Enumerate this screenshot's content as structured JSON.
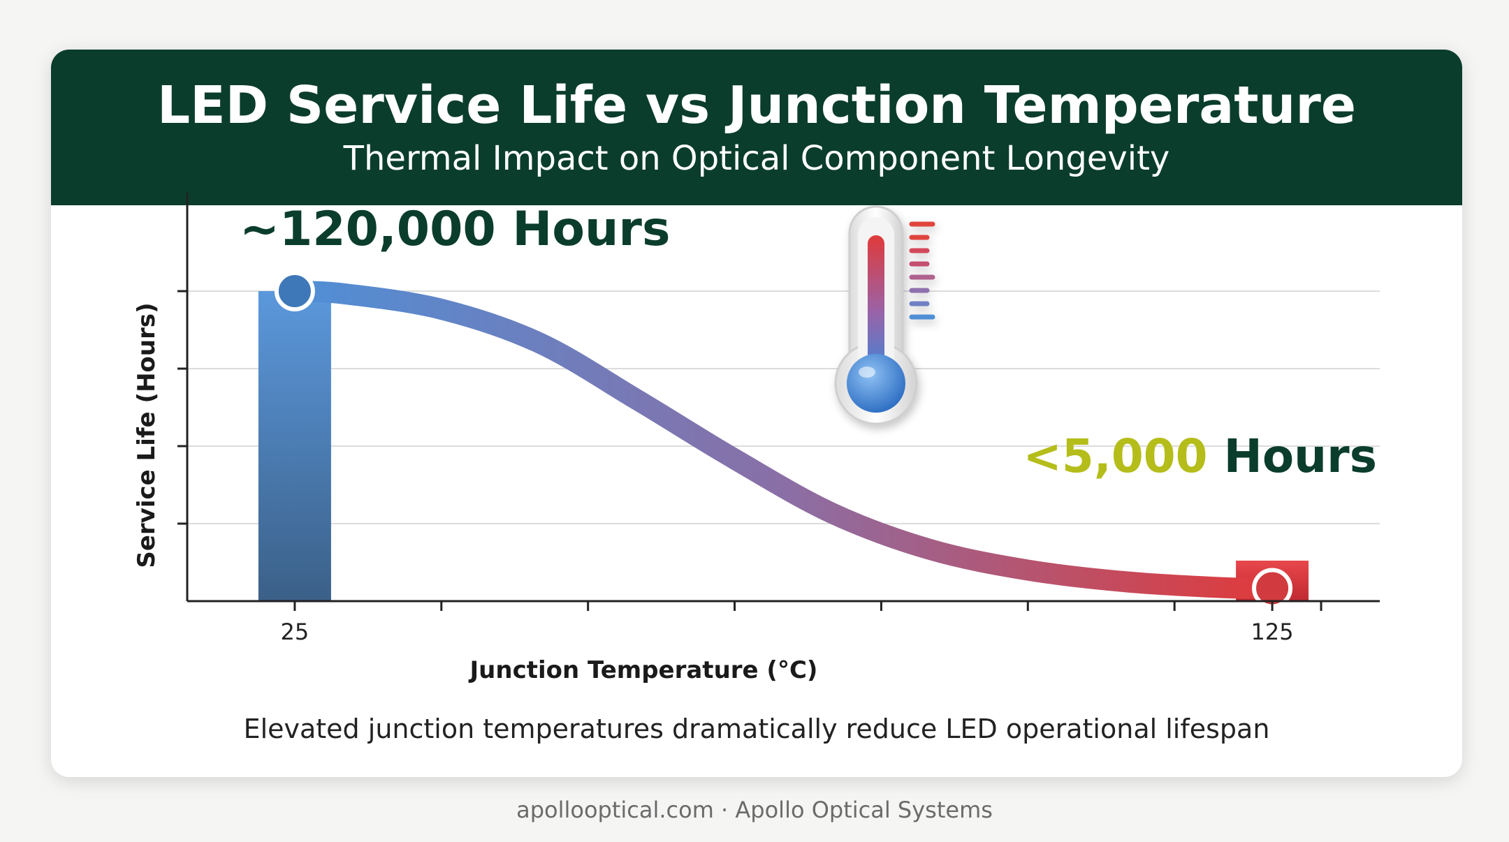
{
  "header": {
    "title": "LED Service Life vs Junction Temperature",
    "subtitle": "Thermal Impact on Optical Component Longevity"
  },
  "caption": "Elevated junction temperatures dramatically reduce LED operational lifespan",
  "footer": "apollooptical.com · Apollo Optical Systems",
  "icons": {
    "thermometer": "thermometer-icon"
  },
  "colors": {
    "header_bg": "#0b3d2c",
    "cool": "#4f8fd6",
    "hot": "#e03a3a",
    "highlight": "#b5bd1a",
    "dark_text": "#0b3d2c"
  },
  "chart_data": {
    "type": "line",
    "title": "LED Service Life vs Junction Temperature",
    "xlabel": "Junction Temperature (°C)",
    "ylabel": "Service Life (Hours)",
    "x_tick_labels": [
      "25",
      "125"
    ],
    "xlim": [
      14,
      136
    ],
    "ylim": [
      0,
      150000
    ],
    "grid": true,
    "series": [
      {
        "x": [
          25,
          30,
          40,
          50,
          60,
          70,
          80,
          90,
          100,
          110,
          120,
          125
        ],
        "y": [
          120000,
          119000,
          113000,
          100000,
          78000,
          55000,
          34000,
          20000,
          12000,
          7500,
          5200,
          5000
        ]
      }
    ],
    "bars": [
      {
        "x": 25,
        "value": 120000
      },
      {
        "x": 125,
        "value": 5000
      }
    ],
    "annotations": [
      {
        "text": "~120,000 Hours",
        "x": 25,
        "y": 120000
      },
      {
        "prefix": "<5,000",
        "suffix": "Hours",
        "x": 125,
        "y": 5000
      }
    ]
  }
}
